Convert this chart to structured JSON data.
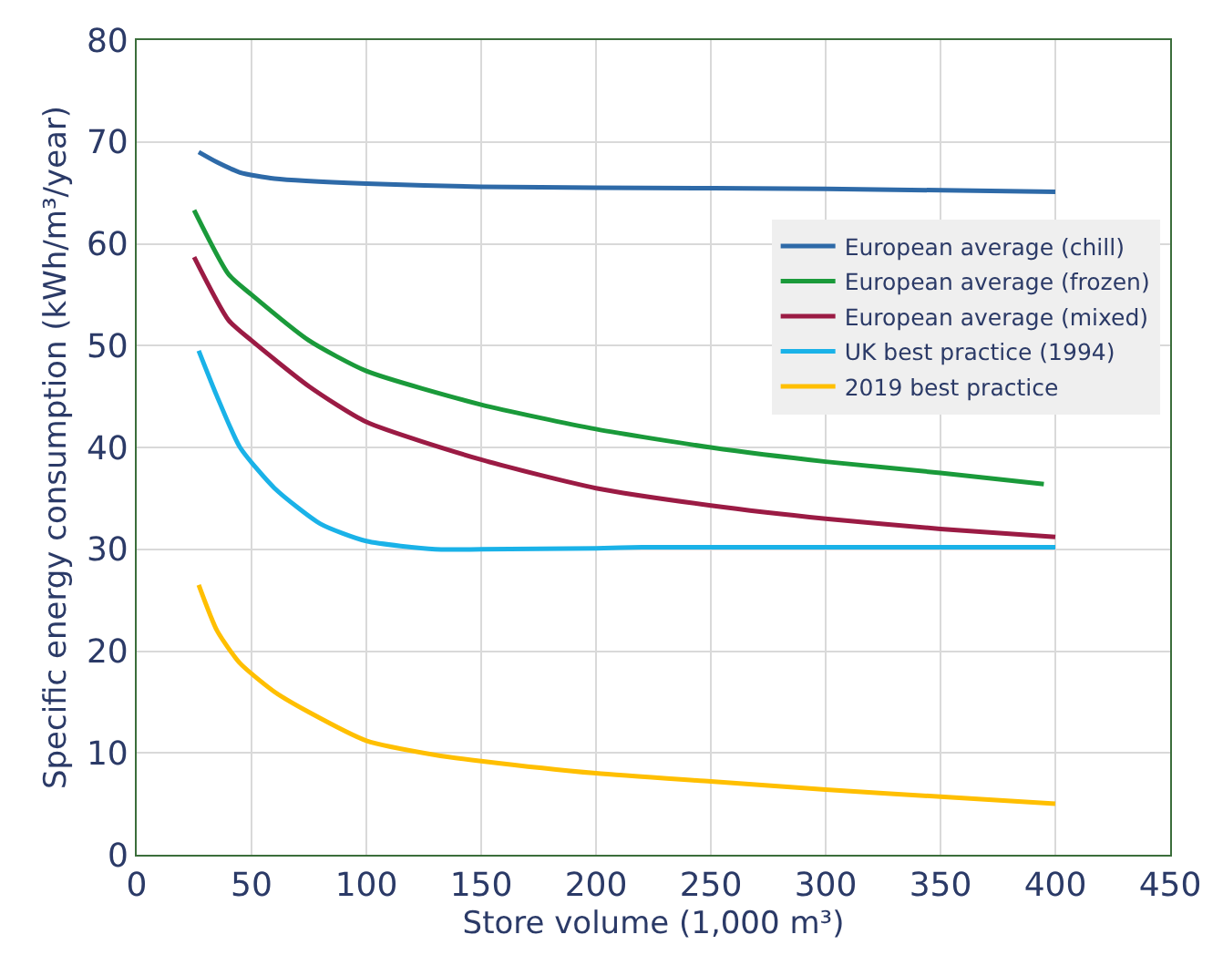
{
  "chart_data": {
    "type": "line",
    "xlabel": "Store volume (1,000 m³)",
    "ylabel": "Specific energy consumption (kWh/m³/year)",
    "xlim": [
      0,
      450
    ],
    "xticks": [
      0,
      50,
      100,
      150,
      200,
      250,
      300,
      350,
      400,
      450
    ],
    "ylim": [
      0,
      80
    ],
    "yticks": [
      0,
      10,
      20,
      30,
      40,
      50,
      60,
      70,
      80
    ],
    "grid": true,
    "legend": "right",
    "marker": "none",
    "line_style": "solid",
    "series": [
      {
        "name": "European average (chill)",
        "color": "#2e6aa8",
        "x": [
          27,
          35,
          45,
          60,
          100,
          150,
          200,
          300,
          400
        ],
        "values": [
          69,
          68,
          67,
          66.4,
          65.9,
          65.6,
          65.5,
          65.4,
          65.1
        ]
      },
      {
        "name": "European average (frozen)",
        "color": "#1a9a3a",
        "x": [
          25,
          40,
          50,
          75,
          100,
          150,
          200,
          250,
          300,
          350,
          395
        ],
        "values": [
          63.3,
          57,
          55,
          50.5,
          47.5,
          44.2,
          41.8,
          40,
          38.6,
          37.5,
          36.4
        ]
      },
      {
        "name": "European average (mixed)",
        "color": "#9b1b44",
        "x": [
          25,
          40,
          50,
          75,
          100,
          150,
          200,
          250,
          300,
          350,
          400
        ],
        "values": [
          58.7,
          52.5,
          50.5,
          46,
          42.5,
          38.8,
          36,
          34.3,
          33,
          32,
          31.2
        ]
      },
      {
        "name": "UK best practice (1994)",
        "color": "#1ab2e8",
        "x": [
          27,
          35,
          45,
          60,
          80,
          100,
          130,
          150,
          200,
          220,
          300,
          400
        ],
        "values": [
          49.5,
          45,
          40,
          36,
          32.5,
          30.8,
          30,
          30,
          30.1,
          30.2,
          30.2,
          30.2
        ]
      },
      {
        "name": "2019 best practice",
        "color": "#ffbf00",
        "x": [
          27,
          35,
          45,
          60,
          75,
          100,
          130,
          150,
          200,
          250,
          300,
          350,
          400
        ],
        "values": [
          26.5,
          22,
          18.8,
          16,
          14,
          11.2,
          9.8,
          9.2,
          8,
          7.2,
          6.4,
          5.7,
          5
        ]
      }
    ]
  }
}
